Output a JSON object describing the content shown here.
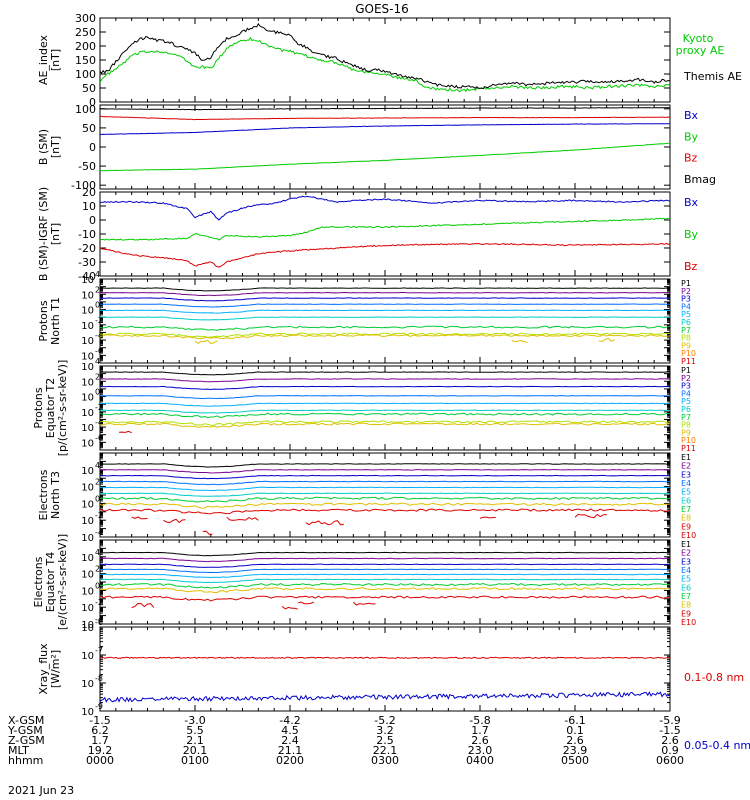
{
  "title": "GOES-16",
  "date_label": "2021 Jun 23",
  "colors": {
    "black": "#000000",
    "red": "#dd0000",
    "green": "#00cc00",
    "blue": "#0000cc",
    "P1": "#000000",
    "P2": "#7a0090",
    "P3": "#0000cc",
    "P4": "#0070ff",
    "P5": "#00b0ff",
    "P6": "#00cccc",
    "P7": "#00cc33",
    "P8": "#b0e000",
    "P9": "#e0c000",
    "P10": "#ff8000",
    "P11": "#dd0000"
  },
  "chart_data": [
    {
      "id": "ae",
      "type": "line",
      "ylabel": [
        "AE_index",
        "[nT]"
      ],
      "ylim": [
        0,
        300
      ],
      "yticks": [
        0,
        50,
        100,
        150,
        200,
        250,
        300
      ],
      "series": [
        {
          "name": "Kyoto proxy AE",
          "color": "#00cc00",
          "x": [
            0,
            5,
            10,
            15,
            20,
            25,
            30,
            35,
            40,
            45,
            50,
            55,
            60,
            65,
            70,
            75,
            80,
            85,
            90,
            95,
            100,
            105,
            110,
            115,
            120,
            125,
            130,
            135,
            140,
            145,
            150,
            155,
            160,
            165,
            170,
            175,
            180,
            185,
            190,
            195,
            200,
            205,
            210,
            215,
            220,
            225,
            230,
            235,
            240,
            250,
            260,
            270,
            280,
            290,
            300,
            310,
            320,
            330,
            340,
            350,
            360
          ],
          "values": [
            75,
            100,
            118,
            140,
            165,
            175,
            180,
            182,
            180,
            170,
            165,
            145,
            125,
            125,
            120,
            155,
            190,
            210,
            222,
            225,
            218,
            205,
            195,
            185,
            180,
            170,
            165,
            155,
            150,
            145,
            140,
            130,
            115,
            110,
            108,
            105,
            100,
            90,
            85,
            80,
            75,
            55,
            50,
            45,
            45,
            40,
            42,
            45,
            48,
            50,
            55,
            52,
            50,
            55,
            55,
            50,
            55,
            58,
            60,
            55,
            60
          ]
        },
        {
          "name": "Themis AE",
          "color": "#000000",
          "x": [
            0,
            5,
            10,
            15,
            20,
            25,
            30,
            35,
            40,
            45,
            50,
            55,
            60,
            65,
            70,
            75,
            80,
            85,
            90,
            95,
            100,
            105,
            110,
            115,
            120,
            125,
            130,
            135,
            140,
            145,
            150,
            155,
            160,
            165,
            170,
            175,
            180,
            185,
            190,
            195,
            200,
            205,
            210,
            215,
            220,
            225,
            230,
            235,
            240,
            250,
            260,
            270,
            280,
            290,
            300,
            310,
            320,
            330,
            340,
            350,
            360
          ],
          "values": [
            105,
            110,
            145,
            175,
            205,
            225,
            230,
            222,
            218,
            210,
            195,
            190,
            175,
            145,
            160,
            200,
            225,
            235,
            250,
            265,
            275,
            255,
            250,
            245,
            240,
            210,
            195,
            175,
            170,
            160,
            155,
            140,
            130,
            120,
            110,
            115,
            110,
            100,
            95,
            90,
            85,
            75,
            65,
            60,
            58,
            55,
            55,
            55,
            50,
            60,
            70,
            62,
            65,
            72,
            70,
            75,
            70,
            75,
            80,
            72,
            80
          ]
        }
      ],
      "legend": [
        {
          "text": "Kyoto",
          "color": "#00cc00"
        },
        {
          "text": "proxy AE",
          "color": "#00cc00"
        },
        {
          "text": "Themis AE",
          "color": "#000000"
        }
      ]
    },
    {
      "id": "bsm",
      "type": "line",
      "ylabel": [
        "B (SM)",
        "[nT]"
      ],
      "ylim": [
        -110,
        110
      ],
      "yticks": [
        -100,
        -50,
        0,
        50,
        100
      ],
      "series": [
        {
          "name": "Bx",
          "color": "#0000cc",
          "x": [
            0,
            60,
            120,
            180,
            240,
            300,
            360
          ],
          "values": [
            33,
            38,
            50,
            55,
            58,
            60,
            61
          ]
        },
        {
          "name": "By",
          "color": "#00cc00",
          "x": [
            0,
            60,
            120,
            180,
            240,
            300,
            360
          ],
          "values": [
            -62,
            -58,
            -45,
            -35,
            -22,
            -8,
            10
          ]
        },
        {
          "name": "Bz",
          "color": "#dd0000",
          "x": [
            0,
            60,
            120,
            180,
            240,
            300,
            360
          ],
          "values": [
            80,
            72,
            75,
            76,
            77,
            77,
            78
          ]
        },
        {
          "name": "Bmag",
          "color": "#000000",
          "x": [
            0,
            60,
            120,
            180,
            240,
            300,
            360
          ],
          "values": [
            100,
            98,
            100,
            101,
            102,
            102,
            103
          ]
        }
      ],
      "legend": [
        {
          "text": "Bx",
          "color": "#0000cc"
        },
        {
          "text": "By",
          "color": "#00cc00"
        },
        {
          "text": "Bz",
          "color": "#dd0000"
        },
        {
          "text": "Bmag",
          "color": "#000000"
        }
      ]
    },
    {
      "id": "bigrf",
      "type": "line",
      "ylabel": [
        "B (SM)-IGRF (SM)",
        "[nT]"
      ],
      "ylim": [
        -40,
        20
      ],
      "yticks": [
        -40,
        -30,
        -20,
        -10,
        0,
        10,
        20
      ],
      "series": [
        {
          "name": "Bx",
          "color": "#0000cc",
          "x": [
            0,
            20,
            40,
            55,
            60,
            65,
            70,
            75,
            80,
            95,
            110,
            120,
            130,
            150,
            180,
            210,
            240,
            270,
            300,
            330,
            360
          ],
          "values": [
            13,
            13,
            12,
            8,
            2,
            4,
            6,
            0,
            5,
            10,
            12,
            15,
            17,
            13,
            15,
            12,
            14,
            13,
            14,
            13,
            14
          ]
        },
        {
          "name": "By",
          "color": "#00cc00",
          "x": [
            0,
            30,
            55,
            60,
            65,
            75,
            80,
            100,
            120,
            130,
            140,
            180,
            240,
            300,
            360
          ],
          "values": [
            -14,
            -14,
            -13,
            -10,
            -11,
            -14,
            -11,
            -12,
            -11,
            -9,
            -5,
            -5,
            -3,
            -1,
            1
          ]
        },
        {
          "name": "Bz",
          "color": "#dd0000",
          "x": [
            0,
            20,
            40,
            55,
            60,
            65,
            70,
            75,
            80,
            100,
            120,
            150,
            180,
            240,
            300,
            360
          ],
          "values": [
            -20,
            -25,
            -27,
            -29,
            -33,
            -31,
            -30,
            -34,
            -30,
            -24,
            -22,
            -20,
            -18,
            -17,
            -18,
            -17
          ]
        }
      ],
      "legend": [
        {
          "text": "Bx",
          "color": "#0000cc"
        },
        {
          "text": "By",
          "color": "#00cc00"
        },
        {
          "text": "Bz",
          "color": "#dd0000"
        }
      ]
    },
    {
      "id": "pn",
      "type": "line",
      "log": true,
      "ylabel": [
        "Protons",
        "North T1"
      ],
      "ylim_exp": [
        -7,
        4
      ],
      "tick_exps": [
        -6,
        -4,
        -2,
        0,
        2,
        4
      ],
      "levels": [
        {
          "name": "P1",
          "exp": 2.8,
          "color": "#000000"
        },
        {
          "name": "P2",
          "exp": 2.2,
          "color": "#7a0090"
        },
        {
          "name": "P3",
          "exp": 1.5,
          "color": "#0000cc"
        },
        {
          "name": "P4",
          "exp": 0.7,
          "color": "#0070ff"
        },
        {
          "name": "P5",
          "exp": -0.1,
          "color": "#00b0ff"
        },
        {
          "name": "P6",
          "exp": -1.0,
          "color": "#00cccc"
        },
        {
          "name": "P7",
          "exp": -2.3,
          "color": "#00cc33"
        },
        {
          "name": "P8",
          "exp": -3.2,
          "color": "#b0e000"
        },
        {
          "name": "P9",
          "exp": -3.4,
          "color": "#e0c000"
        }
      ],
      "segments": [
        {
          "color": "#e0c000",
          "x": [
            60,
            75
          ],
          "exp": -4.2
        },
        {
          "color": "#e0c000",
          "x": [
            260,
            270
          ],
          "exp": -4.3
        },
        {
          "color": "#e0c000",
          "x": [
            315,
            325
          ],
          "exp": -4.0
        }
      ],
      "labels": [
        "P1",
        "P2",
        "P3",
        "P4",
        "P5",
        "P6",
        "P7",
        "P8",
        "P9",
        "P10",
        "P11"
      ]
    },
    {
      "id": "pe",
      "type": "line",
      "log": true,
      "ylabel": [
        "Protons",
        "Equator T2",
        "[p/(cm²-s-sr-keV)]"
      ],
      "ylim_exp": [
        -7,
        4
      ],
      "tick_exps": [
        -6,
        -4,
        -2,
        0,
        2,
        4
      ],
      "levels": [
        {
          "name": "P1",
          "exp": 3.2,
          "color": "#000000"
        },
        {
          "name": "P2",
          "exp": 2.3,
          "color": "#7a0090"
        },
        {
          "name": "P3",
          "exp": 1.3,
          "color": "#0000cc"
        },
        {
          "name": "P4",
          "exp": 0.1,
          "color": "#0070ff"
        },
        {
          "name": "P5",
          "exp": -0.9,
          "color": "#00b0ff"
        },
        {
          "name": "P6",
          "exp": -1.8,
          "color": "#00cccc"
        },
        {
          "name": "P7",
          "exp": -2.3,
          "color": "#00cc33"
        },
        {
          "name": "P8",
          "exp": -3.3,
          "color": "#b0e000"
        },
        {
          "name": "P9",
          "exp": -3.6,
          "color": "#e0c000"
        }
      ],
      "segments": [
        {
          "color": "#dd0000",
          "x": [
            12,
            20
          ],
          "exp": -4.8
        }
      ],
      "labels": [
        "P1",
        "P2",
        "P3",
        "P4",
        "P5",
        "P6",
        "P7",
        "P8",
        "P9",
        "P10",
        "P11"
      ]
    },
    {
      "id": "en",
      "type": "line",
      "log": true,
      "ylabel": [
        "Electrons",
        "North T3"
      ],
      "ylim_exp": [
        -4,
        6
      ],
      "tick_exps": [
        -4,
        -2,
        0,
        2,
        4
      ],
      "levels": [
        {
          "name": "E1",
          "exp": 4.7,
          "color": "#000000"
        },
        {
          "name": "E2",
          "exp": 4.0,
          "color": "#7a0090"
        },
        {
          "name": "E3",
          "exp": 3.3,
          "color": "#0000cc"
        },
        {
          "name": "E4",
          "exp": 2.6,
          "color": "#0070ff"
        },
        {
          "name": "E5",
          "exp": 1.9,
          "color": "#00b0ff"
        },
        {
          "name": "E6",
          "exp": 1.2,
          "color": "#00cccc"
        },
        {
          "name": "E7",
          "exp": 0.6,
          "color": "#00cc33"
        },
        {
          "name": "E8",
          "exp": -0.1,
          "color": "#e0c000"
        },
        {
          "name": "E9",
          "exp": -0.8,
          "color": "#dd0000"
        }
      ],
      "segments": [
        {
          "color": "#dd0000",
          "x": [
            20,
            30
          ],
          "exp": -1.8
        },
        {
          "color": "#dd0000",
          "x": [
            40,
            55
          ],
          "exp": -2.1
        },
        {
          "color": "#dd0000",
          "x": [
            65,
            72
          ],
          "exp": -3.5
        },
        {
          "color": "#dd0000",
          "x": [
            80,
            100
          ],
          "exp": -1.9
        },
        {
          "color": "#dd0000",
          "x": [
            130,
            155
          ],
          "exp": -2.3
        },
        {
          "color": "#dd0000",
          "x": [
            240,
            250
          ],
          "exp": -1.7
        },
        {
          "color": "#dd0000",
          "x": [
            300,
            320
          ],
          "exp": -1.5
        }
      ],
      "labels": [
        "E1",
        "E2",
        "E3",
        "E4",
        "E5",
        "E6",
        "E7",
        "E8",
        "E9",
        "E10"
      ]
    },
    {
      "id": "ee",
      "type": "line",
      "log": true,
      "ylabel": [
        "Electrons",
        "Equator T4",
        "[e/(cm²-s-sr-keV)]"
      ],
      "ylim_exp": [
        -4,
        6
      ],
      "tick_exps": [
        -4,
        -2,
        0,
        2,
        4
      ],
      "levels": [
        {
          "name": "E1",
          "exp": 4.5,
          "color": "#000000"
        },
        {
          "name": "E2",
          "exp": 3.8,
          "color": "#7a0090"
        },
        {
          "name": "E3",
          "exp": 3.1,
          "color": "#0000cc"
        },
        {
          "name": "E4",
          "exp": 2.5,
          "color": "#0070ff"
        },
        {
          "name": "E5",
          "exp": 1.9,
          "color": "#00b0ff"
        },
        {
          "name": "E6",
          "exp": 1.3,
          "color": "#00cccc"
        },
        {
          "name": "E7",
          "exp": 0.7,
          "color": "#00cc33"
        },
        {
          "name": "E8",
          "exp": 0.2,
          "color": "#e0c000"
        },
        {
          "name": "E9",
          "exp": -0.8,
          "color": "#dd0000"
        }
      ],
      "segments": [
        {
          "color": "#dd0000",
          "x": [
            20,
            35
          ],
          "exp": -1.8
        },
        {
          "color": "#dd0000",
          "x": [
            115,
            125
          ],
          "exp": -2.0
        },
        {
          "color": "#dd0000",
          "x": [
            125,
            135
          ],
          "exp": -1.5
        },
        {
          "color": "#dd0000",
          "x": [
            160,
            175
          ],
          "exp": -1.6
        }
      ],
      "labels": [
        "E1",
        "E2",
        "E3",
        "E4",
        "E5",
        "E6",
        "E7",
        "E8",
        "E9",
        "E10"
      ]
    },
    {
      "id": "xray",
      "type": "line",
      "log": true,
      "ylabel": [
        "Xray_flux",
        "[W/m²]"
      ],
      "ylim_exp": [
        -9,
        -6
      ],
      "tick_exps": [
        -9,
        -8,
        -7,
        -6
      ],
      "series": [
        {
          "name": "0.1-0.8 nm",
          "color": "#dd0000",
          "exp": -7.1,
          "noise": 0.02
        },
        {
          "name": "0.05-0.4 nm",
          "color": "#0000cc",
          "exp_start": -8.6,
          "exp_end": -8.4,
          "noise": 0.08
        }
      ],
      "legend": [
        {
          "text": "0.1-0.8 nm",
          "color": "#dd0000"
        },
        {
          "text": "0.05-0.4 nm",
          "color": "#0000cc"
        }
      ]
    }
  ],
  "time_axis": {
    "row_labels": [
      "X-GSM",
      "Y-GSM",
      "Z-GSM",
      "MLT",
      "hhmm"
    ],
    "columns": [
      {
        "minute": 0,
        "values": [
          "-1.5",
          "6.2",
          "1.7",
          "19.2",
          "0000"
        ]
      },
      {
        "minute": 60,
        "values": [
          "-3.0",
          "5.5",
          "2.1",
          "20.1",
          "0100"
        ]
      },
      {
        "minute": 120,
        "values": [
          "-4.2",
          "4.5",
          "2.4",
          "21.1",
          "0200"
        ]
      },
      {
        "minute": 180,
        "values": [
          "-5.2",
          "3.2",
          "2.5",
          "22.1",
          "0300"
        ]
      },
      {
        "minute": 240,
        "values": [
          "-5.8",
          "1.7",
          "2.6",
          "23.0",
          "0400"
        ]
      },
      {
        "minute": 300,
        "values": [
          "-6.1",
          "0.1",
          "2.6",
          "23.9",
          "0500"
        ]
      },
      {
        "minute": 360,
        "values": [
          "-5.9",
          "-1.5",
          "2.6",
          "0.9",
          "0600"
        ]
      }
    ]
  }
}
